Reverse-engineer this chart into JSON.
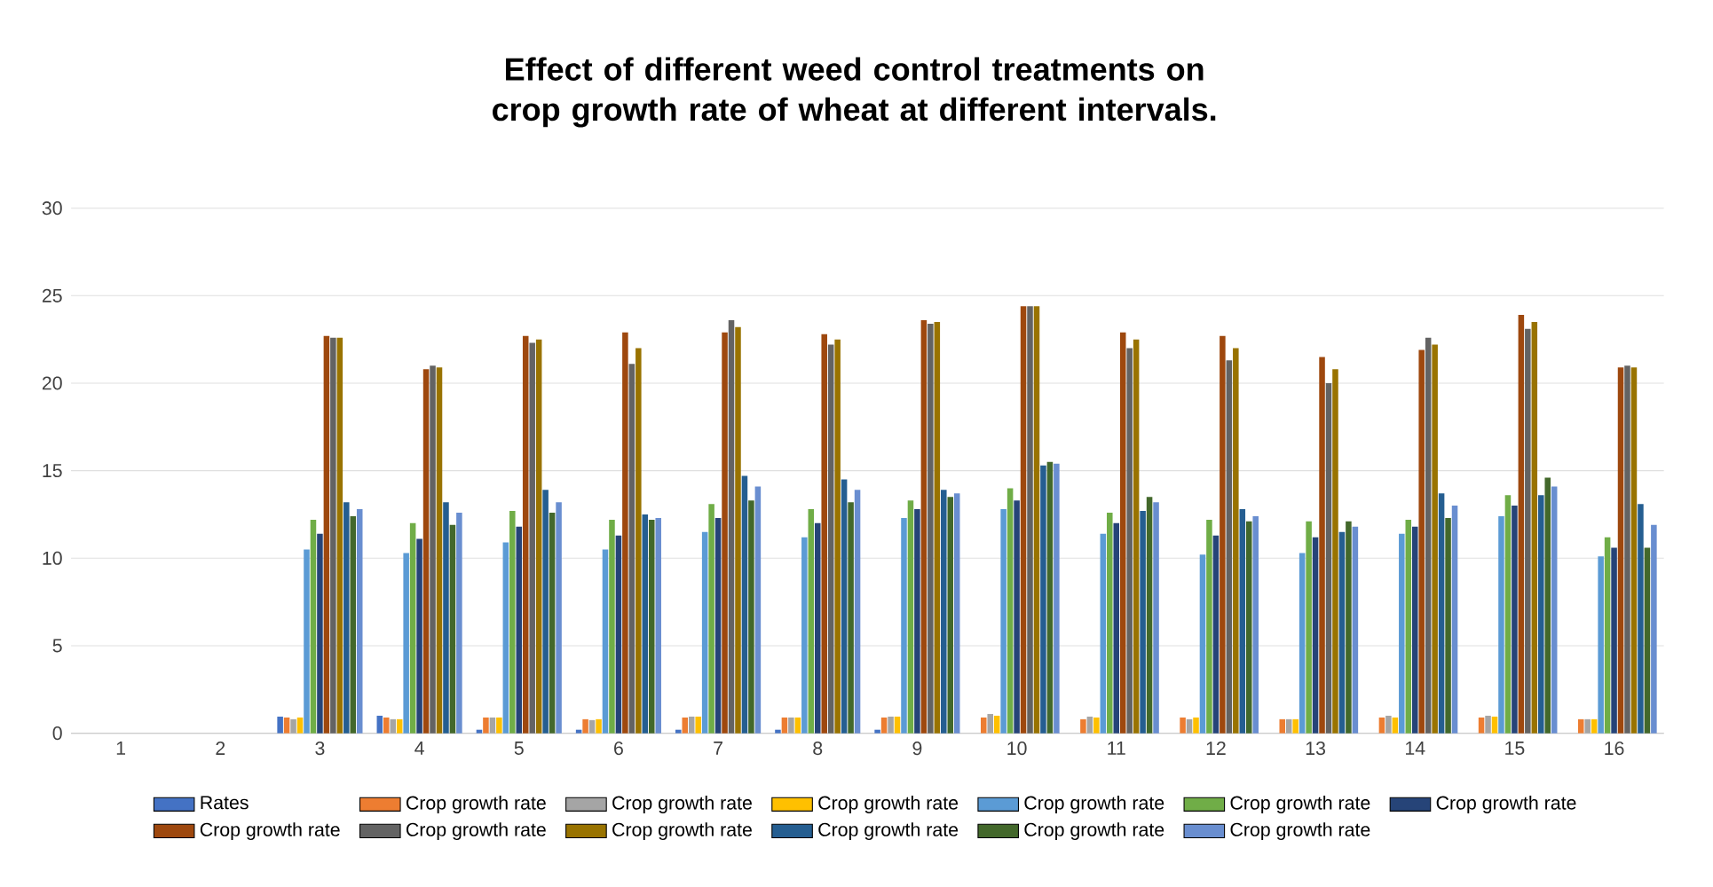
{
  "chart_data": {
    "type": "bar",
    "title": "Effect of different weed control treatments on crop growth rate of wheat at different intervals.",
    "categories": [
      "1",
      "2",
      "3",
      "4",
      "5",
      "6",
      "7",
      "8",
      "9",
      "10",
      "11",
      "12",
      "13",
      "14",
      "15",
      "16"
    ],
    "ylim": [
      0,
      30
    ],
    "yticks": [
      0,
      5,
      10,
      15,
      20,
      25,
      30
    ],
    "grid": "y",
    "legend": "bottom",
    "series": [
      {
        "name": "Rates",
        "color": "#4472c4",
        "values": [
          null,
          null,
          0.95,
          1.0,
          0.2,
          0.2,
          0.2,
          0.2,
          0.2,
          null,
          null,
          null,
          null,
          null,
          null,
          null
        ]
      },
      {
        "name": "Crop growth rate",
        "color": "#ed7d31",
        "values": [
          null,
          null,
          0.9,
          0.9,
          0.9,
          0.8,
          0.9,
          0.9,
          0.9,
          0.9,
          0.8,
          0.9,
          0.8,
          0.9,
          0.9,
          0.8
        ]
      },
      {
        "name": "Crop growth rate",
        "color": "#a5a5a5",
        "values": [
          null,
          null,
          0.8,
          0.8,
          0.9,
          0.75,
          0.95,
          0.9,
          0.95,
          1.1,
          0.95,
          0.8,
          0.8,
          1.0,
          1.0,
          0.8
        ]
      },
      {
        "name": "Crop growth rate",
        "color": "#ffc000",
        "values": [
          null,
          null,
          0.9,
          0.8,
          0.9,
          0.8,
          0.95,
          0.9,
          0.95,
          1.0,
          0.9,
          0.9,
          0.8,
          0.9,
          0.95,
          0.8
        ]
      },
      {
        "name": "Crop growth rate",
        "color": "#5b9bd5",
        "values": [
          null,
          null,
          10.5,
          10.3,
          10.9,
          10.5,
          11.5,
          11.2,
          12.3,
          12.8,
          11.4,
          10.2,
          10.3,
          11.4,
          12.4,
          10.1
        ]
      },
      {
        "name": "Crop growth rate",
        "color": "#70ad47",
        "values": [
          null,
          null,
          12.2,
          12.0,
          12.7,
          12.2,
          13.1,
          12.8,
          13.3,
          14.0,
          12.6,
          12.2,
          12.1,
          12.2,
          13.6,
          11.2
        ]
      },
      {
        "name": "Crop growth rate",
        "color": "#264478",
        "values": [
          null,
          null,
          11.4,
          11.1,
          11.8,
          11.3,
          12.3,
          12.0,
          12.8,
          13.3,
          12.0,
          11.3,
          11.2,
          11.8,
          13.0,
          10.6
        ]
      },
      {
        "name": "Crop growth rate",
        "color": "#9e480e",
        "values": [
          null,
          null,
          22.7,
          20.8,
          22.7,
          22.9,
          22.9,
          22.8,
          23.6,
          24.4,
          22.9,
          22.7,
          21.5,
          21.9,
          23.9,
          20.9
        ]
      },
      {
        "name": "Crop growth rate",
        "color": "#636363",
        "values": [
          null,
          null,
          22.6,
          21.0,
          22.3,
          21.1,
          23.6,
          22.2,
          23.4,
          24.4,
          22.0,
          21.3,
          20.0,
          22.6,
          23.1,
          21.0
        ]
      },
      {
        "name": "Crop growth rate",
        "color": "#997300",
        "values": [
          null,
          null,
          22.6,
          20.9,
          22.5,
          22.0,
          23.2,
          22.5,
          23.5,
          24.4,
          22.5,
          22.0,
          20.8,
          22.2,
          23.5,
          20.9
        ]
      },
      {
        "name": "Crop growth rate",
        "color": "#255e91",
        "values": [
          null,
          null,
          13.2,
          13.2,
          13.9,
          12.5,
          14.7,
          14.5,
          13.9,
          15.3,
          12.7,
          12.8,
          11.5,
          13.7,
          13.6,
          13.1
        ]
      },
      {
        "name": "Crop growth rate",
        "color": "#43682b",
        "values": [
          null,
          null,
          12.4,
          11.9,
          12.6,
          12.2,
          13.3,
          13.2,
          13.5,
          15.5,
          13.5,
          12.1,
          12.1,
          12.3,
          14.6,
          10.6
        ]
      },
      {
        "name": "Crop growth rate",
        "color": "#698ed0",
        "values": [
          null,
          null,
          12.8,
          12.6,
          13.2,
          12.3,
          14.1,
          13.9,
          13.7,
          15.4,
          13.2,
          12.4,
          11.8,
          13.0,
          14.1,
          11.9
        ]
      }
    ]
  }
}
